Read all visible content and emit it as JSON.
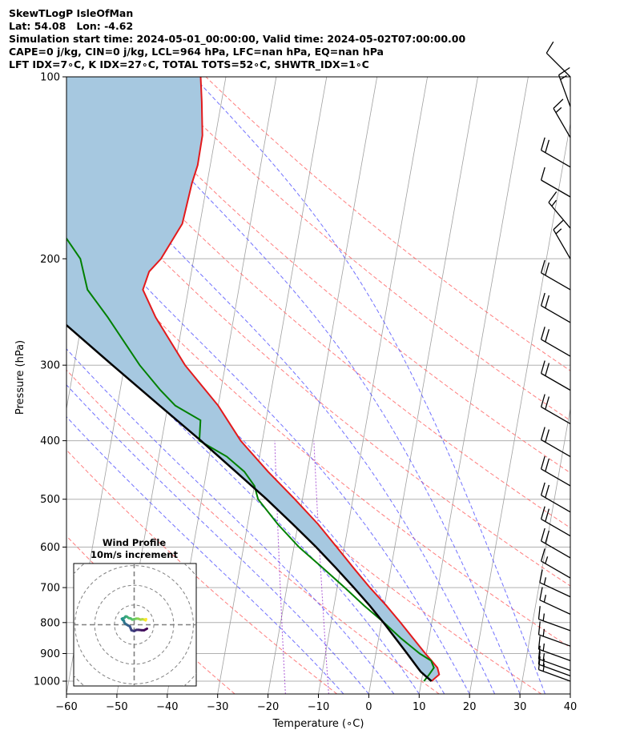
{
  "header": {
    "title": "SkewTLogP IsleOfMan",
    "location": "Lat: 54.08   Lon: -4.62",
    "times": "Simulation start time: 2024-05-01_00:00:00, Valid time: 2024-05-02T07:00:00.00",
    "indices1": "CAPE=0 j/kg, CIN=0 j/kg, LCL=964 hPa, LFC=nan hPa, EQ=nan hPa",
    "indices2": "LFT IDX=7∘C, K IDX=27∘C, TOTAL TOTS=52∘C, SHWTR_IDX=1∘C"
  },
  "colors": {
    "temperature": "#e31a1c",
    "dewpoint": "#008000",
    "parcel": "#000000",
    "cape_fill": "#a6c8e0",
    "dry_adiabat": "#ff6666",
    "moist_adiabat": "#4d4dff",
    "mixing_ratio": "#9933cc",
    "isotherm": "#a0a0a0",
    "isobar": "#b0b0b0"
  },
  "chart_data": [
    {
      "type": "skewt",
      "xlabel": "Temperature (∘C)",
      "ylabel": "Pressure (hPa)",
      "xlim": [
        -60,
        40
      ],
      "ylim": [
        1050,
        100
      ],
      "x_ticks": [
        -60,
        -50,
        -40,
        -30,
        -20,
        -10,
        0,
        10,
        20,
        30,
        40
      ],
      "x_tick_labels": [
        "−60",
        "−50",
        "−40",
        "−30",
        "−20",
        "−10",
        "0",
        "10",
        "20",
        "30",
        "40"
      ],
      "y_ticks": [
        1000,
        900,
        800,
        700,
        600,
        500,
        400,
        300,
        200,
        100
      ],
      "y_tick_labels": [
        "1000",
        "900",
        "800",
        "700",
        "600",
        "500",
        "400",
        "300",
        "200",
        "100"
      ],
      "temperature_profile": {
        "pressure_hpa": [
          1000,
          975,
          950,
          925,
          900,
          850,
          800,
          750,
          700,
          650,
          600,
          550,
          500,
          450,
          400,
          350,
          300,
          250,
          225,
          210,
          200,
          175,
          150,
          140,
          125,
          110,
          100
        ],
        "temp_c": [
          12,
          13.3,
          12.7,
          11.3,
          9.8,
          6.9,
          3.8,
          0.4,
          -3.5,
          -7.4,
          -11.5,
          -16.0,
          -21.5,
          -27.8,
          -34.3,
          -40.0,
          -48.0,
          -55.5,
          -59.0,
          -58.4,
          -56.5,
          -53.5,
          -53.0,
          -52.5,
          -52.6,
          -53.9,
          -55.0
        ]
      },
      "dewpoint_profile": {
        "pressure_hpa": [
          1000,
          975,
          950,
          925,
          900,
          850,
          800,
          750,
          700,
          650,
          600,
          550,
          500,
          475,
          450,
          425,
          400,
          370,
          350,
          330,
          300,
          250,
          225,
          200,
          185,
          175,
          160,
          150,
          125,
          110,
          100
        ],
        "dewpoint_c": [
          10.5,
          11.3,
          12.0,
          11.2,
          8.7,
          4.5,
          0.5,
          -4.0,
          -8.5,
          -13.5,
          -19.0,
          -24.0,
          -28.8,
          -30.0,
          -32.5,
          -36.5,
          -42.5,
          -43.0,
          -48.5,
          -52.0,
          -57.0,
          -65.0,
          -70.0,
          -72.5,
          -76.0,
          -80.0,
          -82.0,
          -82.5,
          -86.0,
          -90.0,
          -93.0
        ]
      },
      "parcel_profile": {
        "pressure_hpa": [
          1000,
          980,
          964,
          950,
          900,
          850,
          800,
          750,
          700,
          650,
          600,
          550,
          500,
          450,
          400,
          350,
          300,
          250,
          200,
          150,
          125,
          100
        ],
        "temp_c": [
          12.0,
          10.6,
          9.5,
          8.8,
          6.2,
          3.4,
          0.4,
          -2.9,
          -6.7,
          -10.9,
          -15.6,
          -21.0,
          -27.1,
          -34.2,
          -42.2,
          -51.6,
          -62.4,
          -75.0,
          -90.0,
          -108.3,
          -119.6,
          -133.2
        ]
      },
      "wind_barbs": {
        "pressure_hpa": [
          1000,
          980,
          960,
          925,
          875,
          825,
          775,
          725,
          675,
          625,
          575,
          525,
          475,
          425,
          375,
          330,
          290,
          255,
          225,
          200,
          178,
          158,
          141,
          126,
          112,
          100
        ],
        "speed_kt": [
          15,
          15,
          15,
          15,
          15,
          15,
          15,
          15,
          15,
          20,
          20,
          20,
          20,
          20,
          20,
          20,
          20,
          20,
          20,
          15,
          15,
          10,
          20,
          15,
          15,
          10
        ],
        "direction_deg": [
          290,
          290,
          290,
          290,
          290,
          290,
          295,
          295,
          300,
          300,
          300,
          300,
          300,
          300,
          300,
          300,
          300,
          300,
          300,
          330,
          320,
          300,
          300,
          330,
          340,
          315
        ]
      }
    },
    {
      "type": "hodograph",
      "title": "Wind Profile",
      "subtitle": "10m/s increment",
      "ring_spacing_ms": 10,
      "ring_count": 3,
      "u_ms": [
        6.5,
        5.0,
        3.8,
        2.2,
        1.2,
        0.0,
        -1.4,
        -1.8,
        -2.2,
        -3.2,
        -4.2,
        -5.0,
        -5.2,
        -5.8,
        -6.2,
        -5.8,
        -5.0,
        -4.4,
        -3.8,
        -2.8,
        -1.8,
        -1.0,
        0.0,
        1.0,
        2.0,
        3.2,
        4.2,
        5.2,
        5.6,
        6.0,
        5.8
      ],
      "v_ms": [
        -2.0,
        -2.8,
        -2.8,
        -2.6,
        -2.6,
        -3.2,
        -2.8,
        -1.8,
        -0.8,
        -0.3,
        0.3,
        1.0,
        2.0,
        2.4,
        3.0,
        3.2,
        3.4,
        4.2,
        4.2,
        3.4,
        3.2,
        2.6,
        2.8,
        3.1,
        3.1,
        2.6,
        2.8,
        2.6,
        2.4,
        2.8,
        2.2
      ]
    }
  ]
}
